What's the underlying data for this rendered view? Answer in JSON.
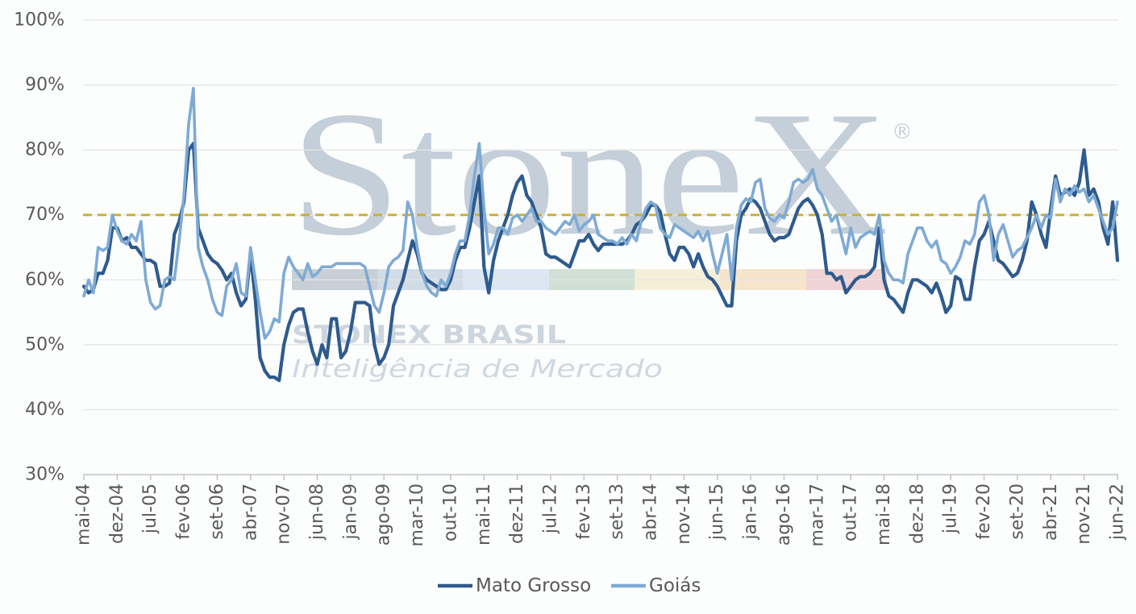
{
  "watermark": {
    "brand": "StoneX",
    "registered": "®",
    "subtitle": "STONEX BRASIL",
    "tagline": "Inteligência de Mercado",
    "text_color": "#c5cfd9",
    "bar_colors": [
      "#c9cfd6",
      "#d2dce7",
      "#dce7f3",
      "#d1e0d5",
      "#f5efd7",
      "#f6e4cb",
      "#efd3d6"
    ]
  },
  "chart_data": {
    "type": "line",
    "title": "",
    "xlabel": "",
    "ylabel": "",
    "ylim": [
      30,
      100
    ],
    "xlim": [
      "2004-05",
      "2022-06"
    ],
    "grid": true,
    "legend": "bottom",
    "yticks": [
      {
        "value": 30,
        "label": "30%"
      },
      {
        "value": 40,
        "label": "40%"
      },
      {
        "value": 50,
        "label": "50%"
      },
      {
        "value": 60,
        "label": "60%"
      },
      {
        "value": 70,
        "label": "70%"
      },
      {
        "value": 80,
        "label": "80%"
      },
      {
        "value": 90,
        "label": "90%"
      },
      {
        "value": 100,
        "label": "100%"
      }
    ],
    "xticks": [
      {
        "date": "2004-05",
        "label": "mai-04"
      },
      {
        "date": "2004-12",
        "label": "dez-04"
      },
      {
        "date": "2005-07",
        "label": "jul-05"
      },
      {
        "date": "2006-02",
        "label": "fev-06"
      },
      {
        "date": "2006-09",
        "label": "set-06"
      },
      {
        "date": "2007-04",
        "label": "abr-07"
      },
      {
        "date": "2007-11",
        "label": "nov-07"
      },
      {
        "date": "2008-06",
        "label": "jun-08"
      },
      {
        "date": "2009-01",
        "label": "jan-09"
      },
      {
        "date": "2009-08",
        "label": "ago-09"
      },
      {
        "date": "2010-03",
        "label": "mar-10"
      },
      {
        "date": "2010-10",
        "label": "out-10"
      },
      {
        "date": "2011-05",
        "label": "mai-11"
      },
      {
        "date": "2011-12",
        "label": "dez-11"
      },
      {
        "date": "2012-07",
        "label": "jul-12"
      },
      {
        "date": "2013-02",
        "label": "fev-13"
      },
      {
        "date": "2013-09",
        "label": "set-13"
      },
      {
        "date": "2014-04",
        "label": "abr-14"
      },
      {
        "date": "2014-11",
        "label": "nov-14"
      },
      {
        "date": "2015-06",
        "label": "jun-15"
      },
      {
        "date": "2016-01",
        "label": "jan-16"
      },
      {
        "date": "2016-08",
        "label": "ago-16"
      },
      {
        "date": "2017-03",
        "label": "mar-17"
      },
      {
        "date": "2017-10",
        "label": "out-17"
      },
      {
        "date": "2018-05",
        "label": "mai-18"
      },
      {
        "date": "2018-12",
        "label": "dez-18"
      },
      {
        "date": "2019-07",
        "label": "jul-19"
      },
      {
        "date": "2020-02",
        "label": "fev-20"
      },
      {
        "date": "2020-09",
        "label": "set-20"
      },
      {
        "date": "2021-04",
        "label": "abr-21"
      },
      {
        "date": "2021-11",
        "label": "nov-21"
      },
      {
        "date": "2022-06",
        "label": "jun-22"
      }
    ],
    "reference_line": {
      "y": 70,
      "color": "#c8b13b",
      "style": "dashed"
    },
    "x": [
      "2004-05",
      "2004-06",
      "2004-07",
      "2004-08",
      "2004-09",
      "2004-10",
      "2004-11",
      "2004-12",
      "2005-01",
      "2005-02",
      "2005-03",
      "2005-04",
      "2005-05",
      "2005-06",
      "2005-07",
      "2005-08",
      "2005-09",
      "2005-10",
      "2005-11",
      "2005-12",
      "2006-01",
      "2006-02",
      "2006-03",
      "2006-04",
      "2006-05",
      "2006-06",
      "2006-07",
      "2006-08",
      "2006-09",
      "2006-10",
      "2006-11",
      "2006-12",
      "2007-01",
      "2007-02",
      "2007-03",
      "2007-04",
      "2007-05",
      "2007-06",
      "2007-07",
      "2007-08",
      "2007-09",
      "2007-10",
      "2007-11",
      "2007-12",
      "2008-01",
      "2008-02",
      "2008-03",
      "2008-04",
      "2008-05",
      "2008-06",
      "2008-07",
      "2008-08",
      "2008-09",
      "2008-10",
      "2008-11",
      "2008-12",
      "2009-01",
      "2009-02",
      "2009-03",
      "2009-04",
      "2009-05",
      "2009-06",
      "2009-07",
      "2009-08",
      "2009-09",
      "2009-10",
      "2009-11",
      "2009-12",
      "2010-01",
      "2010-02",
      "2010-03",
      "2010-04",
      "2010-05",
      "2010-06",
      "2010-07",
      "2010-08",
      "2010-09",
      "2010-10",
      "2010-11",
      "2010-12",
      "2011-01",
      "2011-02",
      "2011-03",
      "2011-04",
      "2011-05",
      "2011-06",
      "2011-07",
      "2011-08",
      "2011-09",
      "2011-10",
      "2011-11",
      "2011-12",
      "2012-01",
      "2012-02",
      "2012-03",
      "2012-04",
      "2012-05",
      "2012-06",
      "2012-07",
      "2012-08",
      "2012-09",
      "2012-10",
      "2012-11",
      "2012-12",
      "2013-01",
      "2013-02",
      "2013-03",
      "2013-04",
      "2013-05",
      "2013-06",
      "2013-07",
      "2013-08",
      "2013-09",
      "2013-10",
      "2013-11",
      "2013-12",
      "2014-01",
      "2014-02",
      "2014-03",
      "2014-04",
      "2014-05",
      "2014-06",
      "2014-07",
      "2014-08",
      "2014-09",
      "2014-10",
      "2014-11",
      "2014-12",
      "2015-01",
      "2015-02",
      "2015-03",
      "2015-04",
      "2015-05",
      "2015-06",
      "2015-07",
      "2015-08",
      "2015-09",
      "2015-10",
      "2015-11",
      "2015-12",
      "2016-01",
      "2016-02",
      "2016-03",
      "2016-04",
      "2016-05",
      "2016-06",
      "2016-07",
      "2016-08",
      "2016-09",
      "2016-10",
      "2016-11",
      "2016-12",
      "2017-01",
      "2017-02",
      "2017-03",
      "2017-04",
      "2017-05",
      "2017-06",
      "2017-07",
      "2017-08",
      "2017-09",
      "2017-10",
      "2017-11",
      "2017-12",
      "2018-01",
      "2018-02",
      "2018-03",
      "2018-04",
      "2018-05",
      "2018-06",
      "2018-07",
      "2018-08",
      "2018-09",
      "2018-10",
      "2018-11",
      "2018-12",
      "2019-01",
      "2019-02",
      "2019-03",
      "2019-04",
      "2019-05",
      "2019-06",
      "2019-07",
      "2019-08",
      "2019-09",
      "2019-10",
      "2019-11",
      "2019-12",
      "2020-01",
      "2020-02",
      "2020-03",
      "2020-04",
      "2020-05",
      "2020-06",
      "2020-07",
      "2020-08",
      "2020-09",
      "2020-10",
      "2020-11",
      "2020-12",
      "2021-01",
      "2021-02",
      "2021-03",
      "2021-04",
      "2021-05",
      "2021-06",
      "2021-07",
      "2021-08",
      "2021-09",
      "2021-10",
      "2021-11",
      "2021-12",
      "2022-01",
      "2022-02",
      "2022-03",
      "2022-04",
      "2022-05",
      "2022-06"
    ],
    "series": [
      {
        "name": "Mato Grosso",
        "color": "#2e5b8d",
        "values": [
          59,
          58,
          58.5,
          61,
          61,
          63,
          68,
          68,
          66,
          66.5,
          65,
          65,
          64,
          63,
          63,
          62.5,
          59,
          59,
          59.5,
          67,
          69,
          72,
          80,
          81,
          68,
          66,
          64,
          63,
          62.5,
          61.5,
          60,
          61,
          58,
          56,
          57,
          64,
          57,
          48,
          46,
          45,
          45,
          44.5,
          50,
          53,
          55,
          55.5,
          55.5,
          52,
          49,
          47,
          50,
          48,
          54,
          54,
          48,
          49,
          52,
          56.5,
          56.5,
          56.5,
          56,
          50,
          47,
          48,
          50,
          56,
          58,
          60,
          63,
          66,
          64,
          61,
          60,
          59.5,
          59,
          58.5,
          58.5,
          60,
          63,
          65,
          65,
          68,
          72,
          76,
          62,
          58,
          63,
          66,
          68,
          70,
          73,
          75,
          76,
          73,
          72,
          70,
          68,
          64,
          63.5,
          63.5,
          63,
          62.5,
          62,
          64,
          66,
          66,
          67,
          65.5,
          64.5,
          65.5,
          65.5,
          65.5,
          65.5,
          65.5,
          66,
          67,
          68.5,
          69,
          70,
          71.5,
          71.5,
          70.5,
          67,
          64,
          63,
          65,
          65,
          64,
          62,
          64,
          62,
          60.5,
          60,
          59,
          57.5,
          56,
          56,
          66,
          70,
          71,
          72.5,
          72,
          71,
          69,
          67,
          66,
          66.5,
          66.5,
          67,
          69,
          71,
          72,
          72.5,
          71.5,
          70,
          67,
          61,
          61,
          60,
          60.5,
          58,
          59,
          60,
          60.5,
          60.5,
          61,
          62,
          68,
          60,
          57.5,
          57,
          56,
          55,
          58,
          60,
          60,
          59.5,
          59,
          58,
          59.5,
          57.5,
          55,
          56,
          60.5,
          60,
          57,
          57,
          62,
          66,
          67,
          69,
          66,
          63,
          62.5,
          61.5,
          60.5,
          61,
          63,
          66,
          72,
          70,
          67,
          65,
          71,
          76,
          73,
          73.5,
          74,
          73,
          75,
          80,
          73,
          74,
          72,
          68,
          65.5,
          72,
          63
        ]
      },
      {
        "name": "Goiás",
        "color": "#7eaad4",
        "values": [
          57.5,
          60,
          58,
          65,
          64.5,
          65,
          70,
          67.5,
          66,
          65.5,
          67,
          66,
          69,
          60,
          56.5,
          55.5,
          56,
          60,
          60.5,
          60,
          66,
          73,
          84,
          89.5,
          65,
          62,
          60,
          57,
          55,
          54.5,
          59,
          60,
          62.5,
          58,
          57.5,
          65,
          60,
          55,
          51,
          52,
          54,
          53.5,
          61,
          63.5,
          62,
          61,
          60,
          62.5,
          60.5,
          61,
          62,
          62,
          62,
          62.5,
          62.5,
          62.5,
          62.5,
          62.5,
          62.5,
          62,
          59,
          56,
          55,
          58,
          62,
          63,
          63.5,
          64.5,
          72,
          70,
          65,
          61,
          59,
          58,
          57.5,
          60,
          59,
          61,
          64,
          66,
          66,
          70,
          76,
          81,
          71,
          64,
          65.5,
          68,
          68,
          67,
          69.5,
          70,
          69,
          70,
          71,
          69,
          69,
          68,
          67.5,
          67,
          68,
          69,
          68.5,
          70,
          67.5,
          68.5,
          69,
          70,
          67,
          66.5,
          66,
          66,
          65.5,
          66.5,
          65.5,
          67,
          66,
          69,
          71,
          72,
          71.5,
          68,
          67,
          66.5,
          68.5,
          68,
          67.5,
          67,
          66.5,
          67.5,
          66,
          67.5,
          64,
          61,
          64,
          67,
          60,
          68,
          71.5,
          72.5,
          72,
          75,
          75.5,
          71,
          69.5,
          69,
          70,
          69.5,
          72,
          75,
          75.5,
          75,
          75.5,
          77,
          74,
          73,
          71,
          69,
          70,
          67,
          64,
          68,
          65,
          66.5,
          67,
          67.5,
          67,
          70,
          63,
          61,
          60,
          60,
          59.5,
          64,
          66,
          68,
          68,
          66,
          65,
          66,
          63,
          62.5,
          61,
          62,
          63.5,
          66,
          65.5,
          67,
          72,
          73,
          70,
          63,
          67,
          68.5,
          66,
          63.5,
          64.5,
          65,
          66.5,
          68,
          70,
          68,
          70,
          69.5,
          75.5,
          72,
          74,
          73,
          74.5,
          73.5,
          74,
          72,
          73,
          71,
          69,
          67,
          68,
          72
        ]
      }
    ]
  }
}
